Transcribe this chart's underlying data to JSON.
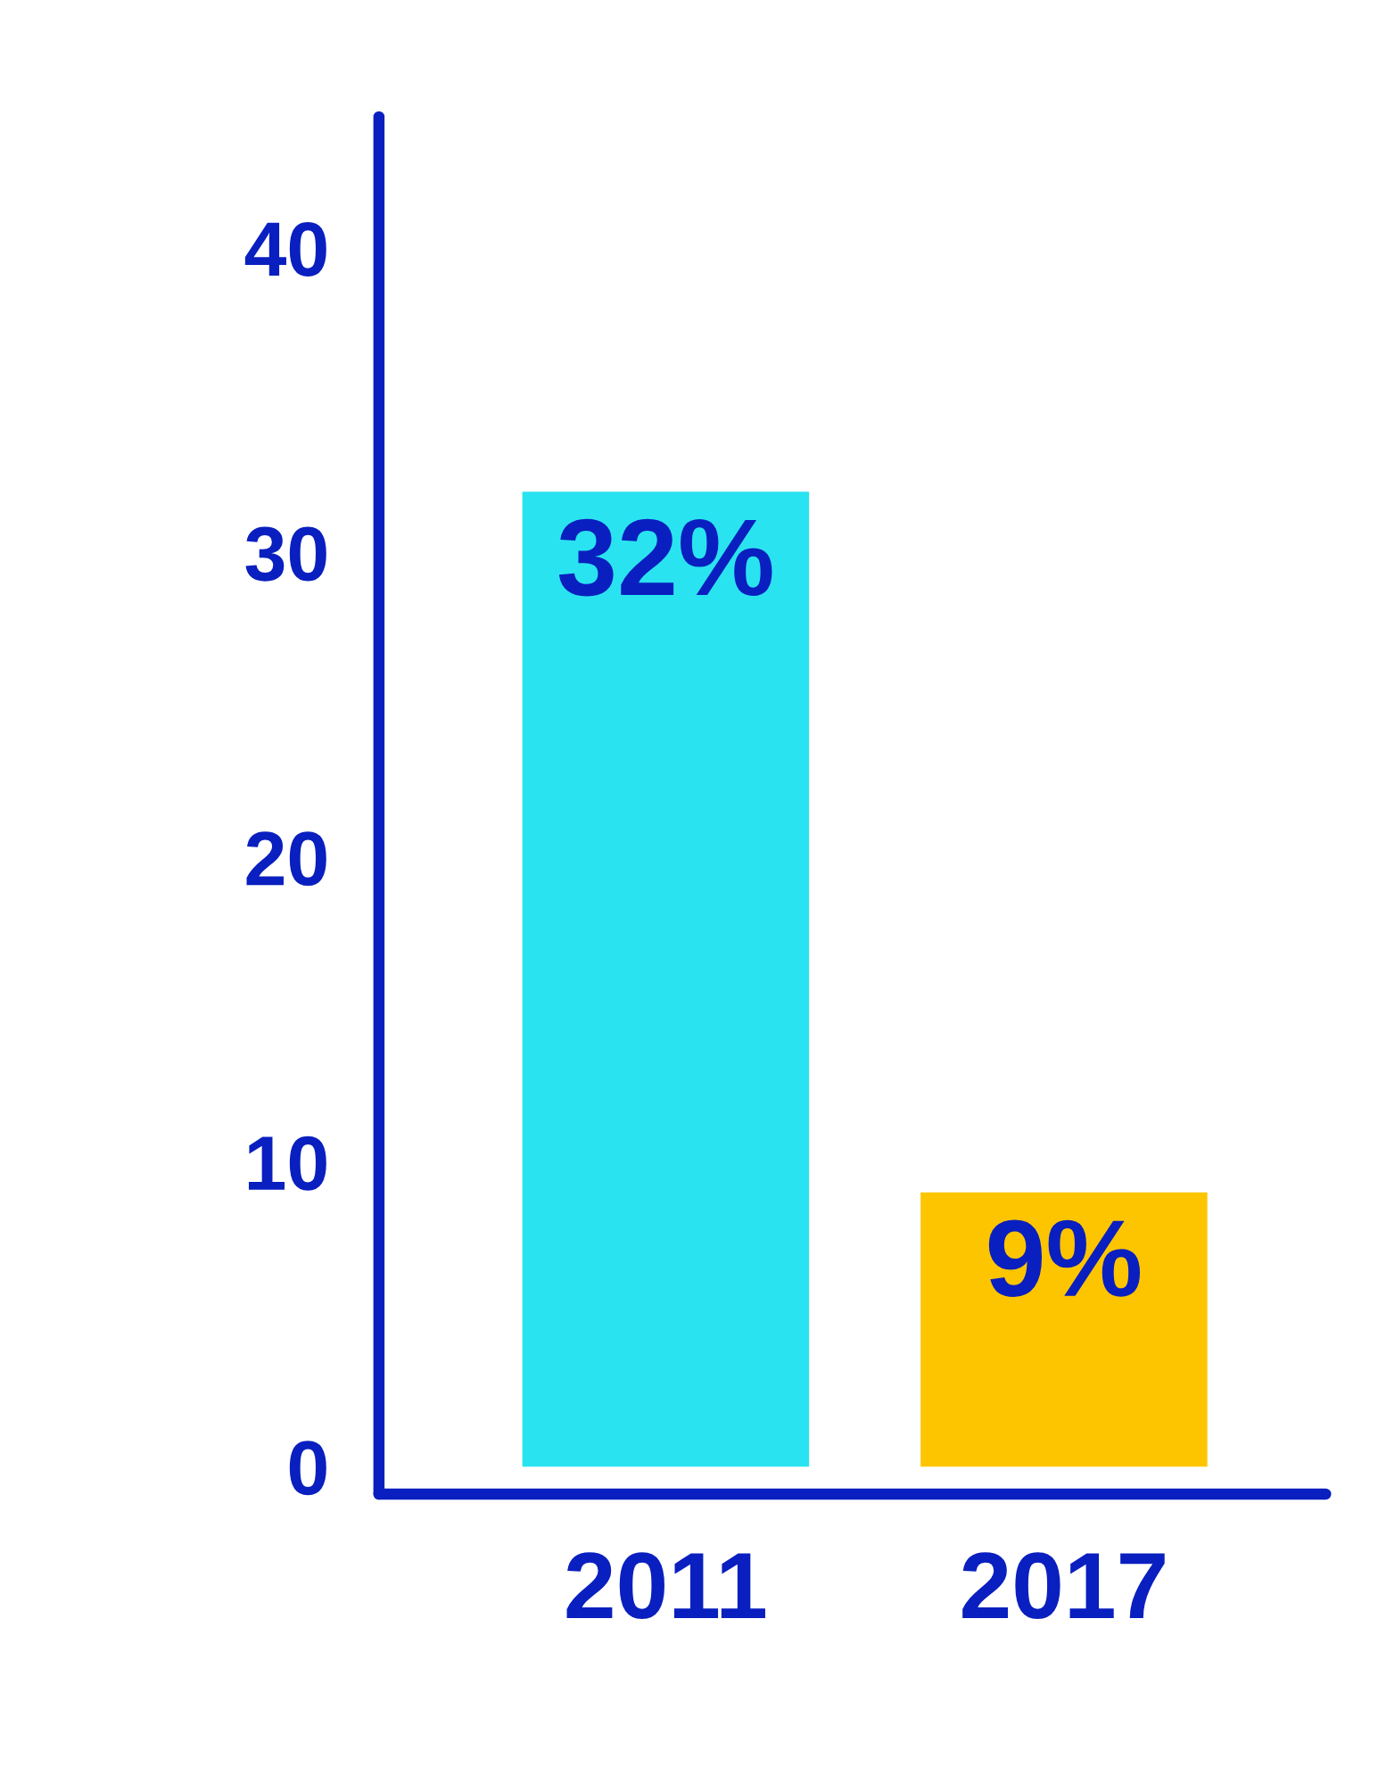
{
  "chart_data": {
    "type": "bar",
    "categories": [
      "2011",
      "2017"
    ],
    "values": [
      32,
      9
    ],
    "colors": [
      "#2ae3f0",
      "#fdc500"
    ],
    "value_labels": [
      "32%",
      "9%"
    ],
    "ylim": [
      -0.9,
      44.3
    ],
    "yticks": [
      0,
      10,
      20,
      30,
      40
    ],
    "grid": false,
    "legend": false
  }
}
